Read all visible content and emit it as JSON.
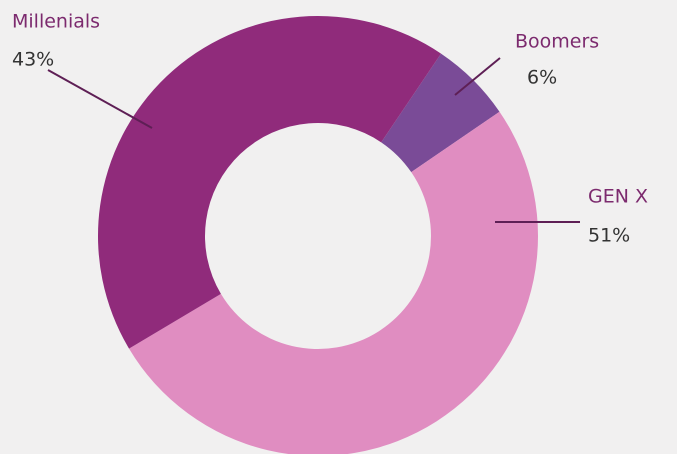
{
  "chart_data": {
    "type": "donut",
    "categories": [
      "Boomers",
      "GEN X",
      "Millenials"
    ],
    "values": [
      6,
      51,
      43
    ],
    "value_labels": [
      "6%",
      "51%",
      "43%"
    ],
    "colors": [
      "#7a4b97",
      "#e08dc1",
      "#902b7b"
    ]
  }
}
